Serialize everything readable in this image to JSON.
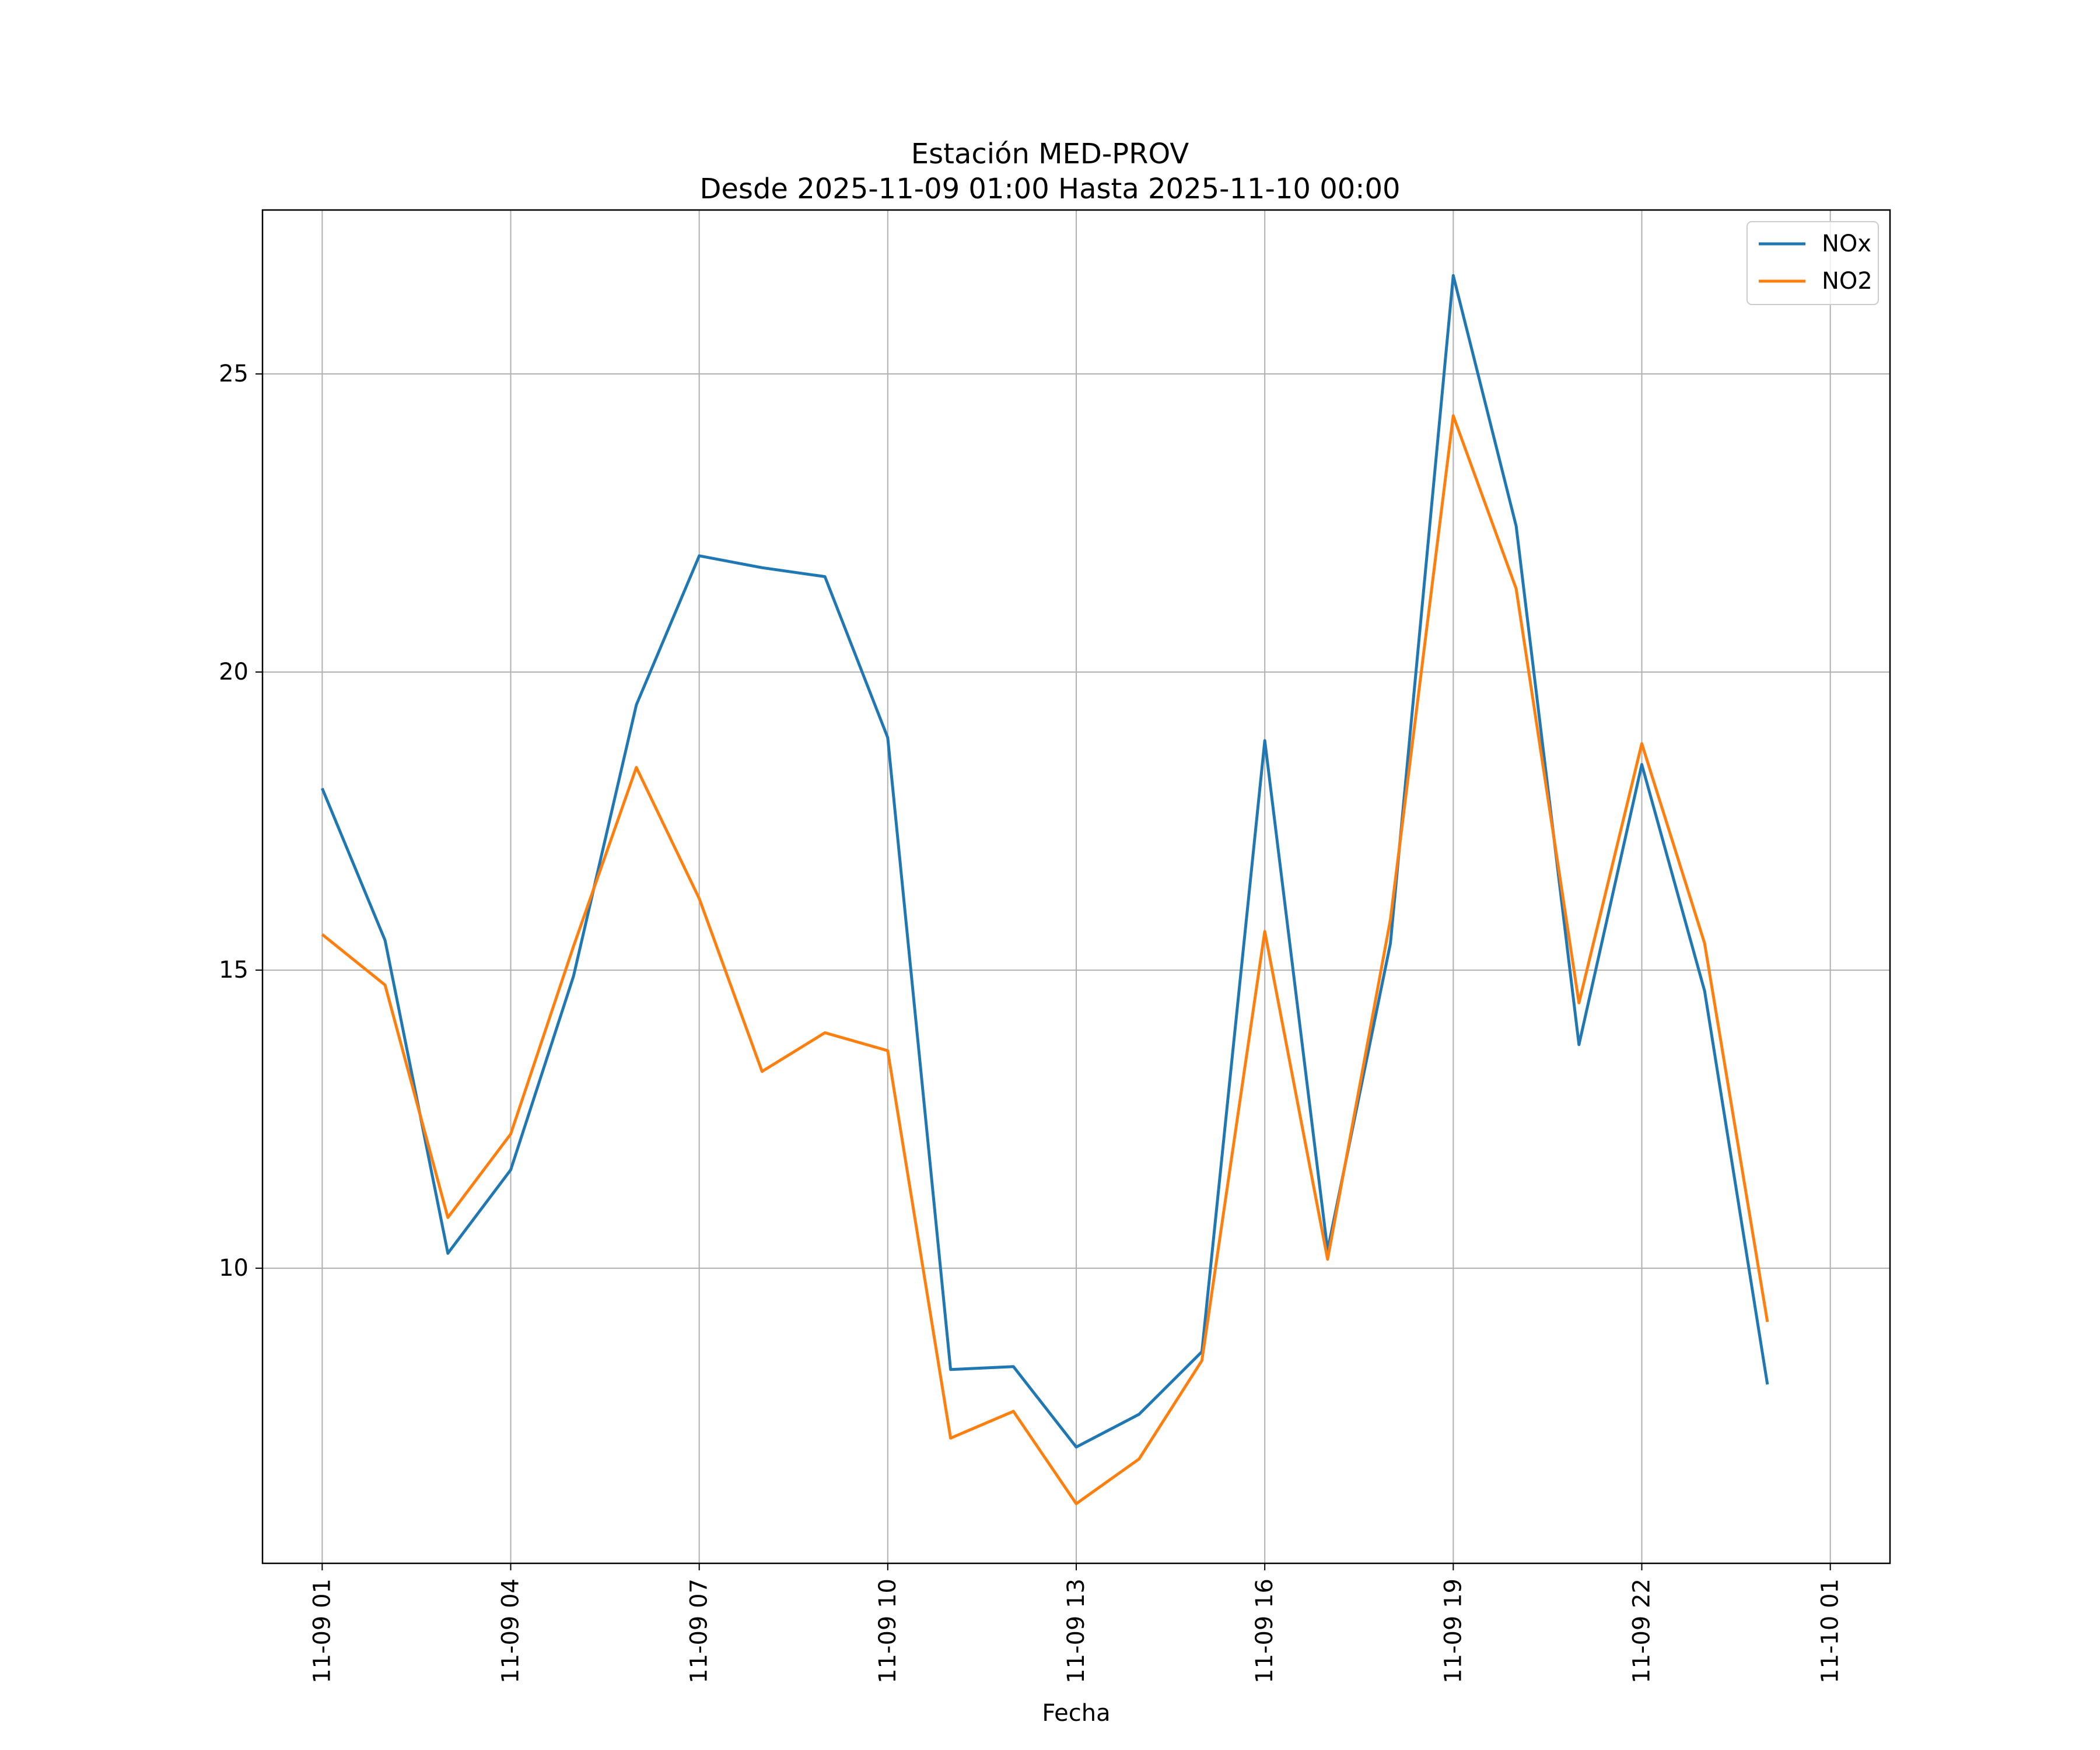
{
  "chart_data": {
    "type": "line",
    "title": "Estación MED-PROV",
    "subtitle": "Desde 2025-11-09 01:00 Hasta 2025-11-10 00:00",
    "xlabel": "Fecha",
    "ylabel": "",
    "grid": true,
    "legend_position": "top-right",
    "ylim": [
      5.05,
      27.75
    ],
    "xlim_hours": [
      -0.95,
      24.95
    ],
    "x_hours": [
      0,
      1,
      2,
      3,
      4,
      5,
      6,
      7,
      8,
      9,
      10,
      11,
      12,
      13,
      14,
      15,
      16,
      17,
      18,
      19,
      20,
      21,
      22,
      23
    ],
    "x_labels_hourly": [
      "2025-11-09 01:00",
      "2025-11-09 02:00",
      "2025-11-09 03:00",
      "2025-11-09 04:00",
      "2025-11-09 05:00",
      "2025-11-09 06:00",
      "2025-11-09 07:00",
      "2025-11-09 08:00",
      "2025-11-09 09:00",
      "2025-11-09 10:00",
      "2025-11-09 11:00",
      "2025-11-09 12:00",
      "2025-11-09 13:00",
      "2025-11-09 14:00",
      "2025-11-09 15:00",
      "2025-11-09 16:00",
      "2025-11-09 17:00",
      "2025-11-09 18:00",
      "2025-11-09 19:00",
      "2025-11-09 20:00",
      "2025-11-09 21:00",
      "2025-11-09 22:00",
      "2025-11-09 23:00",
      "2025-11-10 00:00"
    ],
    "x_ticks": [
      {
        "hour": 0,
        "label": "11-09 01"
      },
      {
        "hour": 3,
        "label": "11-09 04"
      },
      {
        "hour": 6,
        "label": "11-09 07"
      },
      {
        "hour": 9,
        "label": "11-09 10"
      },
      {
        "hour": 12,
        "label": "11-09 13"
      },
      {
        "hour": 15,
        "label": "11-09 16"
      },
      {
        "hour": 18,
        "label": "11-09 19"
      },
      {
        "hour": 21,
        "label": "11-09 22"
      },
      {
        "hour": 24,
        "label": "11-10 01"
      }
    ],
    "y_ticks": [
      {
        "value": 10,
        "label": "10"
      },
      {
        "value": 15,
        "label": "15"
      },
      {
        "value": 20,
        "label": "20"
      },
      {
        "value": 25,
        "label": "25"
      }
    ],
    "series": [
      {
        "name": "NOx",
        "color": "#1f77b4",
        "values": [
          18.05,
          15.5,
          10.25,
          11.65,
          14.9,
          19.45,
          21.95,
          21.75,
          21.6,
          18.9,
          8.3,
          8.35,
          7.0,
          7.55,
          8.6,
          18.85,
          10.3,
          15.45,
          26.65,
          22.45,
          13.75,
          18.45,
          14.65,
          8.05
        ]
      },
      {
        "name": "NO2",
        "color": "#ff7f0e",
        "values": [
          15.6,
          14.75,
          10.85,
          12.25,
          15.4,
          18.4,
          16.2,
          13.3,
          13.95,
          13.65,
          7.15,
          7.6,
          6.05,
          6.8,
          8.45,
          15.65,
          10.15,
          15.85,
          24.3,
          21.4,
          14.45,
          18.8,
          15.45,
          9.1
        ]
      }
    ]
  }
}
